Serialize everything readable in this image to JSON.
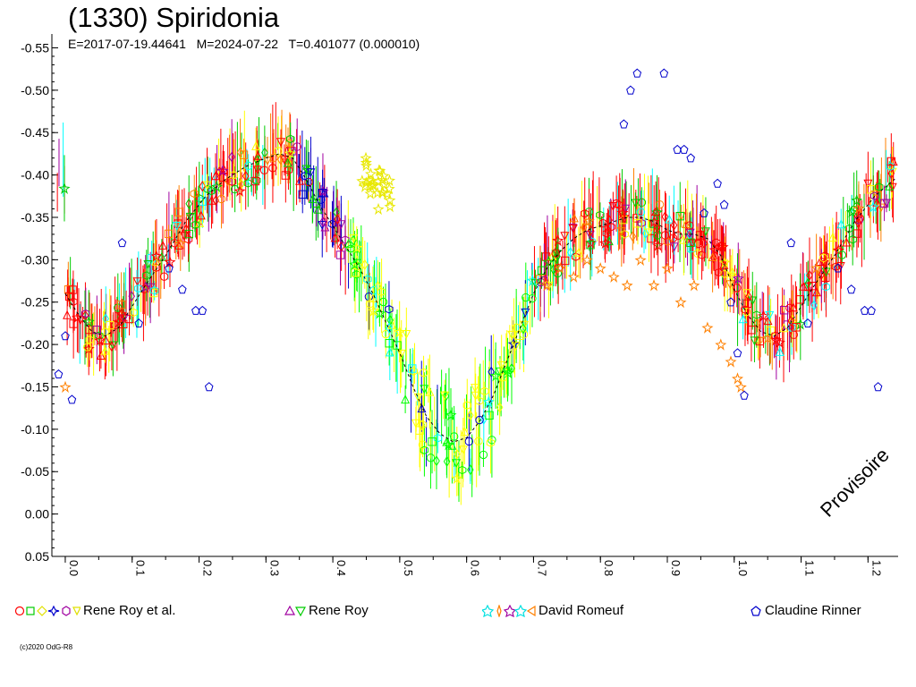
{
  "title": "(1330) Spiridonia",
  "subtitle": "E=2017-07-19.44641   M=2024-07-22   T=0.401077 (0.000010)",
  "watermark": "Provisoire",
  "credit": "(c)2020 OdG-R8",
  "colors": {
    "red": "#ff0000",
    "green": "#00cc00",
    "yellow": "#ffff00",
    "blue": "#0000cc",
    "cyan": "#00ffff",
    "orange": "#ff8000",
    "purple": "#a000a0",
    "lime": "#00ff00"
  },
  "legend": [
    {
      "label": "Rene Roy et al.",
      "icons": [
        "circle-red",
        "square-green",
        "diamond-yellow",
        "star-blue",
        "hexagon-purple",
        "triangle-down-yellow"
      ]
    },
    {
      "label": "Rene Roy",
      "icons": [
        "triangle-up-purple",
        "triangle-down-green"
      ]
    },
    {
      "label": "David Romeuf",
      "icons": [
        "star-cyan",
        "diamond-orange",
        "star-purple",
        "star-cyan",
        "triangle-left-orange"
      ]
    },
    {
      "label": "Claudine Rinner",
      "icons": [
        "pentagon-blue"
      ]
    }
  ],
  "chart_data": {
    "type": "scatter",
    "title": "(1330) Spiridonia",
    "xlabel": "",
    "ylabel": "",
    "xlim": [
      -0.02,
      1.245
    ],
    "ylim": [
      0.05,
      -0.56
    ],
    "x_ticks": [
      "0.0",
      "0.1",
      "0.2",
      "0.3",
      "0.4",
      "0.5",
      "0.6",
      "0.7",
      "0.8",
      "0.9",
      "1.0",
      "1.1",
      "1.2"
    ],
    "y_ticks": [
      "-0.55",
      "-0.50",
      "-0.45",
      "-0.40",
      "-0.35",
      "-0.30",
      "-0.25",
      "-0.20",
      "-0.15",
      "-0.10",
      "-0.05",
      "0.00",
      "0.05"
    ],
    "grid": false,
    "legend_position": "bottom",
    "mean_curve": {
      "x": [
        0.0,
        0.02,
        0.04,
        0.06,
        0.08,
        0.1,
        0.12,
        0.15,
        0.18,
        0.21,
        0.24,
        0.27,
        0.3,
        0.32,
        0.34,
        0.36,
        0.38,
        0.4,
        0.42,
        0.44,
        0.46,
        0.48,
        0.5,
        0.52,
        0.54,
        0.56,
        0.58,
        0.6,
        0.62,
        0.64,
        0.66,
        0.68,
        0.7,
        0.72,
        0.74,
        0.76,
        0.78,
        0.8,
        0.82,
        0.84,
        0.86,
        0.88,
        0.9,
        0.92,
        0.94,
        0.96,
        0.98,
        1.0,
        1.02,
        1.04,
        1.06,
        1.08,
        1.1,
        1.12,
        1.15,
        1.18,
        1.21,
        1.24
      ],
      "y": [
        -0.26,
        -0.235,
        -0.215,
        -0.21,
        -0.22,
        -0.245,
        -0.27,
        -0.305,
        -0.345,
        -0.375,
        -0.395,
        -0.41,
        -0.42,
        -0.425,
        -0.42,
        -0.395,
        -0.365,
        -0.34,
        -0.315,
        -0.29,
        -0.26,
        -0.225,
        -0.19,
        -0.15,
        -0.115,
        -0.095,
        -0.085,
        -0.09,
        -0.11,
        -0.14,
        -0.18,
        -0.22,
        -0.26,
        -0.29,
        -0.31,
        -0.325,
        -0.335,
        -0.34,
        -0.345,
        -0.35,
        -0.35,
        -0.345,
        -0.335,
        -0.33,
        -0.33,
        -0.325,
        -0.305,
        -0.265,
        -0.235,
        -0.215,
        -0.21,
        -0.22,
        -0.245,
        -0.27,
        -0.305,
        -0.345,
        -0.375,
        -0.395
      ]
    },
    "series": [
      {
        "name": "Rene Roy et al.",
        "color": "#ff0000",
        "marker": "circle",
        "band": "dense scatter along mean curve, phase 0.0-1.245"
      },
      {
        "name": "Rene Roy",
        "color": "#a000a0",
        "marker": "triangle-up",
        "band": "dense scatter along mean curve"
      },
      {
        "name": "David Romeuf",
        "color": "#ff8000",
        "marker": "diamond",
        "points": {
          "x": [
            0.0,
            0.72,
            0.74,
            0.76,
            0.78,
            0.8,
            0.82,
            0.84,
            0.86,
            0.88,
            0.9,
            0.92,
            0.94,
            0.96,
            0.98,
            0.995,
            1.005,
            1.01
          ],
          "y": [
            -0.15,
            -0.27,
            -0.29,
            -0.28,
            -0.3,
            -0.29,
            -0.28,
            -0.27,
            -0.3,
            -0.27,
            -0.29,
            -0.25,
            -0.27,
            -0.22,
            -0.2,
            -0.18,
            -0.16,
            -0.15
          ]
        }
      },
      {
        "name": "Claudine Rinner",
        "color": "#0000cc",
        "marker": "pentagon",
        "points": {
          "x": [
            -0.01,
            0.0,
            0.01,
            0.085,
            0.11,
            0.155,
            0.175,
            0.195,
            0.205,
            0.215,
            0.835,
            0.845,
            0.855,
            0.895,
            0.915,
            0.925,
            0.935,
            0.955,
            0.975,
            0.985,
            0.995,
            1.005,
            1.015,
            1.085,
            1.11,
            1.155,
            1.175,
            1.195,
            1.205,
            1.215
          ],
          "y": [
            -0.165,
            -0.21,
            -0.135,
            -0.32,
            -0.225,
            -0.29,
            -0.265,
            -0.24,
            -0.24,
            -0.15,
            -0.46,
            -0.5,
            -0.52,
            -0.52,
            -0.43,
            -0.43,
            -0.42,
            -0.355,
            -0.39,
            -0.365,
            -0.25,
            -0.19,
            -0.14,
            -0.32,
            -0.225,
            -0.29,
            -0.265,
            -0.24,
            -0.24,
            -0.15
          ]
        }
      }
    ]
  }
}
